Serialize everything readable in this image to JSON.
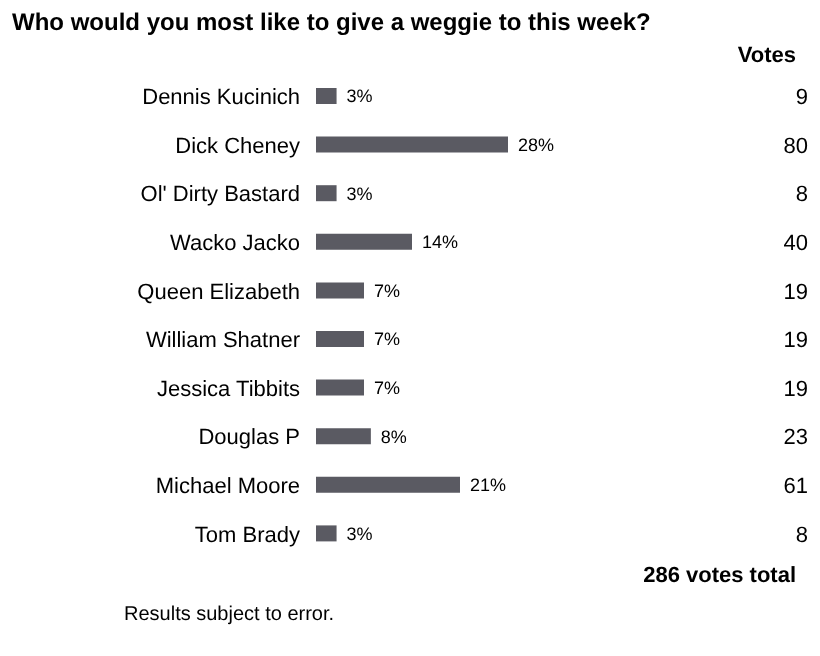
{
  "chart_data": {
    "type": "bar",
    "orientation": "horizontal",
    "title": "Who would you most like to give a weggie to this week?",
    "categories": [
      "Dennis Kucinich",
      "Dick Cheney",
      "Ol' Dirty Bastard",
      "Wacko Jacko",
      "Queen Elizabeth",
      "William Shatner",
      "Jessica Tibbits",
      "Douglas P",
      "Michael Moore",
      "Tom Brady"
    ],
    "values": [
      3,
      28,
      3,
      14,
      7,
      7,
      7,
      8,
      21,
      3
    ],
    "value_labels": [
      "3%",
      "28%",
      "3%",
      "14%",
      "7%",
      "7%",
      "7%",
      "8%",
      "21%",
      "3%"
    ],
    "color": "#5a5a62",
    "tick_labels": "y",
    "annotations": [
      "Votes",
      "9",
      "80",
      "8",
      "40",
      "19",
      "19",
      "19",
      "23",
      "61",
      "8",
      "286 votes total",
      "Results subject to error."
    ]
  }
}
